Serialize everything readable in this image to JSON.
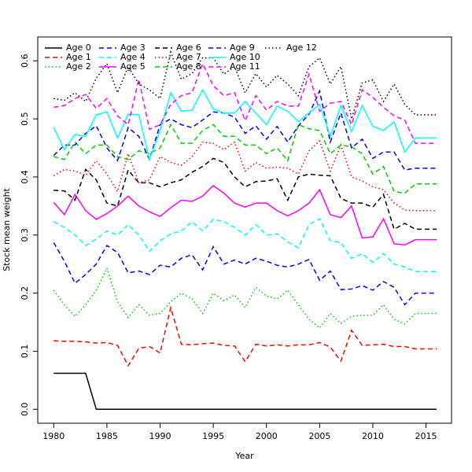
{
  "chart_data": {
    "type": "line",
    "x_label": "Year",
    "y_label": "Stock mean weight",
    "x": [
      1980,
      1981,
      1982,
      1983,
      1984,
      1985,
      1986,
      1987,
      1988,
      1989,
      1990,
      1991,
      1992,
      1993,
      1994,
      1995,
      1996,
      1997,
      1998,
      1999,
      2000,
      2001,
      2002,
      2003,
      2004,
      2005,
      2006,
      2007,
      2008,
      2009,
      2010,
      2011,
      2012,
      2013,
      2014,
      2015,
      2016
    ],
    "xlim": [
      1978.5,
      2017.4
    ],
    "ylim": [
      -0.024,
      0.641
    ],
    "xticks": [
      1980,
      1985,
      1990,
      1995,
      2000,
      2005,
      2010,
      2015
    ],
    "yticks": [
      {
        "value": 0,
        "label": "0.0"
      },
      0.1,
      0.2,
      0.3,
      0.4,
      0.5,
      0.6
    ],
    "legend_position": "top-left",
    "legend_columns": 5,
    "series": [
      {
        "name": "Age 0",
        "color": "#000000",
        "dash": "solid",
        "values": [
          0.062,
          0.062,
          0.062,
          0.062,
          0,
          0,
          0,
          0,
          0,
          0,
          0,
          0,
          0,
          0,
          0,
          0,
          0,
          0,
          0,
          0,
          0,
          0,
          0,
          0,
          0,
          0,
          0,
          0,
          0,
          0,
          0,
          0,
          0,
          0,
          0,
          0,
          0
        ]
      },
      {
        "name": "Age 1",
        "color": "#ff0000",
        "dash": "dashed",
        "values": [
          0.118,
          0.117,
          0.117,
          0.116,
          0.114,
          0.115,
          0.11,
          0.075,
          0.105,
          0.108,
          0.097,
          0.175,
          0.112,
          0.111,
          0.113,
          0.114,
          0.11,
          0.109,
          0.082,
          0.112,
          0.109,
          0.111,
          0.109,
          0.111,
          0.111,
          0.115,
          0.107,
          0.083,
          0.136,
          0.11,
          0.111,
          0.112,
          0.108,
          0.108,
          0.104,
          0.104,
          0.104
        ]
      },
      {
        "name": "Age 2",
        "color": "#00cd00",
        "dash": "dotted",
        "values": [
          0.205,
          0.18,
          0.16,
          0.18,
          0.205,
          0.243,
          0.185,
          0.158,
          0.18,
          0.162,
          0.165,
          0.185,
          0.2,
          0.19,
          0.165,
          0.2,
          0.187,
          0.197,
          0.175,
          0.21,
          0.195,
          0.19,
          0.205,
          0.18,
          0.155,
          0.14,
          0.165,
          0.148,
          0.16,
          0.162,
          0.162,
          0.18,
          0.155,
          0.147,
          0.165,
          0.165,
          0.165
        ]
      },
      {
        "name": "Age 3",
        "color": "#0000ff",
        "dash": "dashed",
        "values": [
          0.287,
          0.255,
          0.217,
          0.232,
          0.25,
          0.282,
          0.27,
          0.235,
          0.238,
          0.232,
          0.248,
          0.245,
          0.26,
          0.266,
          0.24,
          0.28,
          0.25,
          0.257,
          0.25,
          0.26,
          0.255,
          0.248,
          0.245,
          0.25,
          0.258,
          0.222,
          0.238,
          0.206,
          0.207,
          0.213,
          0.205,
          0.22,
          0.21,
          0.18,
          0.2,
          0.2,
          0.2
        ]
      },
      {
        "name": "Age 4",
        "color": "#00ffff",
        "dash": "dashed",
        "values": [
          0.323,
          0.313,
          0.3,
          0.282,
          0.293,
          0.307,
          0.3,
          0.318,
          0.3,
          0.272,
          0.29,
          0.302,
          0.307,
          0.323,
          0.307,
          0.327,
          0.323,
          0.313,
          0.3,
          0.318,
          0.3,
          0.302,
          0.288,
          0.278,
          0.318,
          0.328,
          0.29,
          0.287,
          0.26,
          0.268,
          0.253,
          0.268,
          0.25,
          0.245,
          0.237,
          0.237,
          0.237
        ]
      },
      {
        "name": "Age 5",
        "color": "#ff00ff",
        "dash": "solid",
        "values": [
          0.356,
          0.335,
          0.37,
          0.342,
          0.327,
          0.337,
          0.35,
          0.367,
          0.35,
          0.34,
          0.332,
          0.347,
          0.36,
          0.358,
          0.367,
          0.385,
          0.372,
          0.355,
          0.348,
          0.355,
          0.355,
          0.342,
          0.333,
          0.342,
          0.355,
          0.378,
          0.335,
          0.33,
          0.35,
          0.295,
          0.297,
          0.328,
          0.285,
          0.283,
          0.292,
          0.292,
          0.292
        ]
      },
      {
        "name": "Age 6",
        "color": "#000000",
        "dash": "dashed",
        "values": [
          0.377,
          0.376,
          0.36,
          0.413,
          0.395,
          0.355,
          0.35,
          0.412,
          0.39,
          0.39,
          0.383,
          0.39,
          0.395,
          0.408,
          0.418,
          0.432,
          0.425,
          0.4,
          0.383,
          0.392,
          0.393,
          0.397,
          0.36,
          0.4,
          0.405,
          0.403,
          0.402,
          0.363,
          0.355,
          0.355,
          0.348,
          0.37,
          0.31,
          0.32,
          0.31,
          0.31,
          0.31
        ]
      },
      {
        "name": "Age 7",
        "color": "#ff0000",
        "dash": "dotted",
        "values": [
          0.402,
          0.413,
          0.41,
          0.403,
          0.428,
          0.405,
          0.375,
          0.44,
          0.39,
          0.395,
          0.435,
          0.425,
          0.42,
          0.435,
          0.46,
          0.458,
          0.447,
          0.46,
          0.41,
          0.425,
          0.415,
          0.417,
          0.415,
          0.405,
          0.445,
          0.462,
          0.41,
          0.455,
          0.4,
          0.393,
          0.383,
          0.378,
          0.355,
          0.343,
          0.342,
          0.342,
          0.342
        ]
      },
      {
        "name": "Age 8",
        "color": "#00cd00",
        "dash": "dashed",
        "values": [
          0.435,
          0.43,
          0.46,
          0.44,
          0.455,
          0.455,
          0.435,
          0.43,
          0.445,
          0.44,
          0.45,
          0.49,
          0.458,
          0.458,
          0.48,
          0.49,
          0.47,
          0.47,
          0.455,
          0.455,
          0.44,
          0.45,
          0.428,
          0.49,
          0.483,
          0.48,
          0.44,
          0.455,
          0.452,
          0.44,
          0.405,
          0.418,
          0.375,
          0.372,
          0.388,
          0.388,
          0.388
        ]
      },
      {
        "name": "Age 9",
        "color": "#0000ff",
        "dash": "dashed",
        "values": [
          0.437,
          0.455,
          0.455,
          0.475,
          0.488,
          0.45,
          0.428,
          0.485,
          0.47,
          0.43,
          0.49,
          0.5,
          0.49,
          0.485,
          0.498,
          0.512,
          0.51,
          0.503,
          0.475,
          0.488,
          0.465,
          0.487,
          0.46,
          0.488,
          0.508,
          0.548,
          0.46,
          0.51,
          0.45,
          0.465,
          0.432,
          0.443,
          0.443,
          0.412,
          0.415,
          0.415,
          0.415
        ]
      },
      {
        "name": "Age 10",
        "color": "#00ffff",
        "dash": "solid",
        "values": [
          0.485,
          0.447,
          0.473,
          0.47,
          0.507,
          0.512,
          0.467,
          0.508,
          0.507,
          0.43,
          0.48,
          0.545,
          0.513,
          0.515,
          0.55,
          0.517,
          0.51,
          0.51,
          0.53,
          0.51,
          0.49,
          0.522,
          0.513,
          0.495,
          0.51,
          0.525,
          0.47,
          0.523,
          0.478,
          0.523,
          0.487,
          0.48,
          0.495,
          0.443,
          0.467,
          0.467,
          0.467
        ]
      },
      {
        "name": "Age 11",
        "color": "#ff00ff",
        "dash": "dashed",
        "values": [
          0.52,
          0.523,
          0.535,
          0.542,
          0.518,
          0.535,
          0.505,
          0.49,
          0.568,
          0.482,
          0.49,
          0.525,
          0.54,
          0.545,
          0.595,
          0.557,
          0.54,
          0.545,
          0.497,
          0.54,
          0.515,
          0.53,
          0.522,
          0.522,
          0.577,
          0.513,
          0.527,
          0.53,
          0.49,
          0.55,
          0.537,
          0.52,
          0.505,
          0.498,
          0.458,
          0.458,
          0.458
        ]
      },
      {
        "name": "Age 12",
        "color": "#000000",
        "dash": "dotted",
        "values": [
          0.535,
          0.532,
          0.545,
          0.53,
          0.57,
          0.595,
          0.545,
          0.59,
          0.56,
          0.55,
          0.535,
          0.615,
          0.568,
          0.578,
          0.605,
          0.605,
          0.577,
          0.59,
          0.545,
          0.578,
          0.555,
          0.575,
          0.56,
          0.54,
          0.59,
          0.605,
          0.56,
          0.59,
          0.5,
          0.562,
          0.567,
          0.53,
          0.56,
          0.525,
          0.507,
          0.507,
          0.507
        ]
      }
    ]
  }
}
